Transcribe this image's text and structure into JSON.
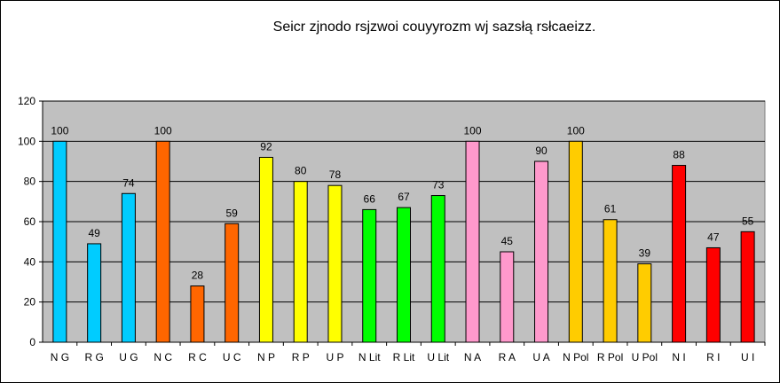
{
  "chart_data": {
    "type": "bar",
    "title": "Seicr zjnodo rsjzwoi couyyrozm wj sazsłą rsłcaeizz.",
    "xlabel": "",
    "ylabel": "",
    "ylim": [
      0,
      120
    ],
    "yticks": [
      0,
      20,
      40,
      60,
      80,
      100,
      120
    ],
    "grid": true,
    "legend": "none",
    "categories": [
      "N G",
      "R G",
      "U G",
      "N C",
      "R C",
      "U C",
      "N P",
      "R P",
      "U P",
      "N Lit",
      "R Lit",
      "U Lit",
      "N A",
      "R A",
      "U A",
      "N Pol",
      "R Pol",
      "U Pol",
      "N I",
      "R I",
      "U I"
    ],
    "values": [
      100,
      49,
      74,
      100,
      28,
      59,
      92,
      80,
      78,
      66,
      67,
      73,
      100,
      45,
      90,
      100,
      61,
      39,
      88,
      47,
      55
    ],
    "colors": [
      "#00ccff",
      "#00ccff",
      "#00ccff",
      "#ff6600",
      "#ff6600",
      "#ff6600",
      "#ffff00",
      "#ffff00",
      "#ffff00",
      "#00ff00",
      "#00ff00",
      "#00ff00",
      "#ff99cc",
      "#ff99cc",
      "#ff99cc",
      "#ffcc00",
      "#ffcc00",
      "#ffcc00",
      "#ff0000",
      "#ff0000",
      "#ff0000"
    ],
    "plot_background": "#c0c0c0"
  }
}
